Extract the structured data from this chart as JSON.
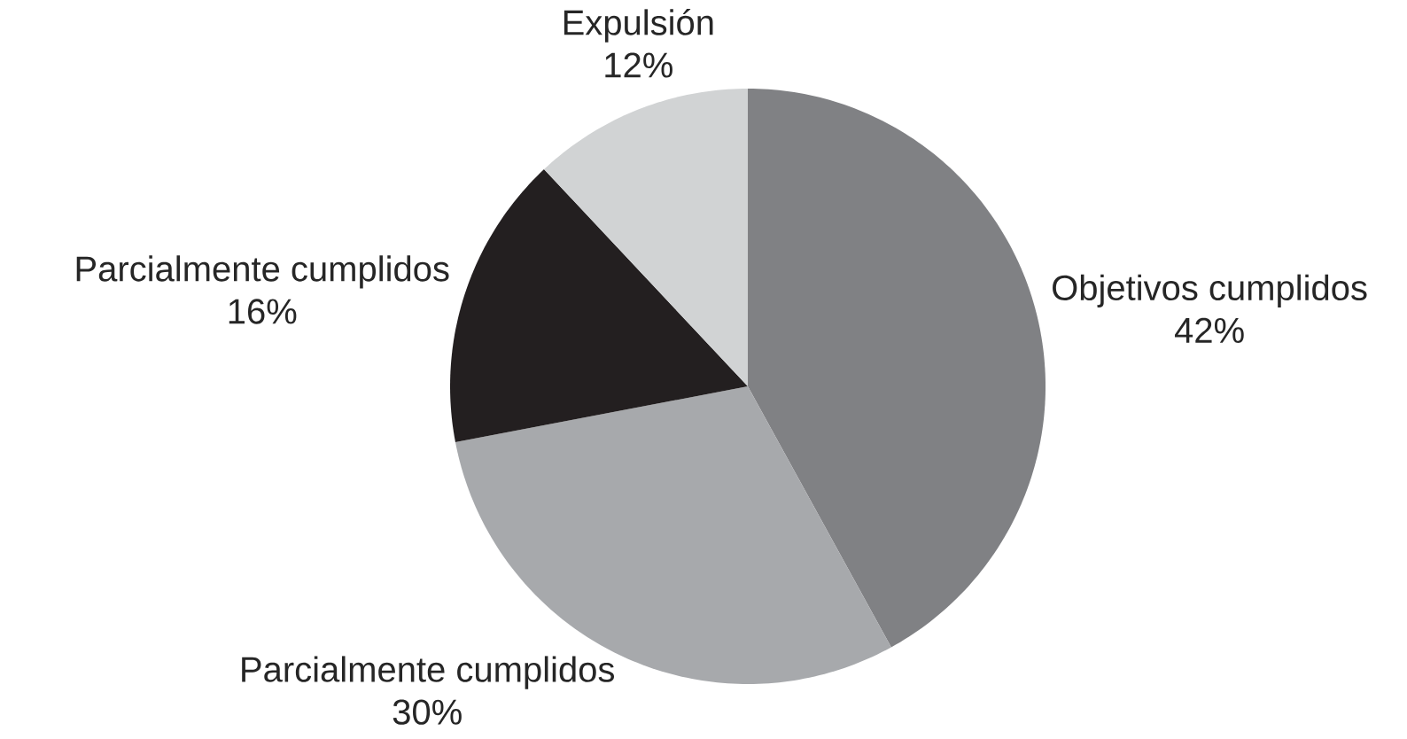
{
  "chart_data": {
    "type": "pie",
    "categories": [
      "Objetivos cumplidos",
      "Parcialmente cumplidos",
      "Parcialmente cumplidos",
      "Expulsión"
    ],
    "values": [
      42,
      30,
      16,
      12
    ],
    "value_labels": [
      "42%",
      "30%",
      "16%",
      "12%"
    ],
    "colors": [
      "#808184",
      "#a7a9ac",
      "#231f20",
      "#d1d3d4"
    ]
  }
}
